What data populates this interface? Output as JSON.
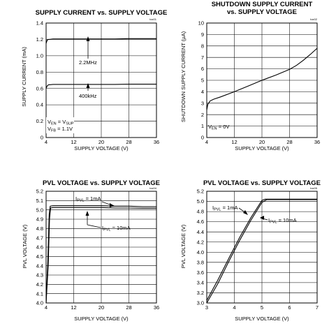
{
  "chart_data": [
    {
      "id": "p1",
      "type": "line",
      "title": "SUPPLY CURRENT vs. SUPPLY VOLTAGE",
      "code": "toc01",
      "xlabel": "SUPPLY VOLTAGE (V)",
      "ylabel": "SUPPLY CURRENT (mA)",
      "xlim": [
        4,
        36
      ],
      "ylim": [
        0,
        1.4
      ],
      "xticks": [
        "4",
        "12",
        "20",
        "28",
        "36"
      ],
      "yticks": [
        "0",
        "0.2",
        "0.4",
        "0.6",
        "0.8",
        "1.0",
        "1.2",
        "1.4"
      ],
      "grid": true,
      "series": [
        {
          "name": "2.2MHz",
          "x": [
            4,
            4.3,
            4.7,
            5,
            6,
            8,
            12,
            16,
            20,
            24,
            28,
            32,
            36
          ],
          "y": [
            1.15,
            1.19,
            1.2,
            1.2,
            1.205,
            1.205,
            1.205,
            1.205,
            1.205,
            1.205,
            1.21,
            1.21,
            1.21
          ]
        },
        {
          "name": "400kHz",
          "x": [
            4,
            4.3,
            4.7,
            5,
            6,
            8,
            12,
            16,
            20,
            24,
            28,
            32,
            36
          ],
          "y": [
            0.6,
            0.63,
            0.645,
            0.645,
            0.65,
            0.65,
            0.65,
            0.65,
            0.65,
            0.65,
            0.652,
            0.652,
            0.652
          ]
        }
      ],
      "annotations": [
        {
          "text": "2.2MHz",
          "x": 16,
          "y": 0.8
        },
        {
          "text": "400kHz",
          "x": 16,
          "y": 0.39
        }
      ],
      "conditions": [
        {
          "main": "V",
          "sub": "EN",
          "rest": " = V",
          "sub2": "SUP"
        },
        {
          "main": "V",
          "sub": "FB",
          "rest": " = 1.1V",
          "sub2": ""
        }
      ]
    },
    {
      "id": "p2",
      "type": "line",
      "title": "SHUTDOWN SUPPLY CURRENT",
      "title2": "vs. SUPPLY VOLTAGE",
      "code": "toc02",
      "xlabel": "SUPPLY VOLTAGE (V)",
      "ylabel": "SHUTDOWN SUPPLY CURRENT (µA)",
      "xlim": [
        4,
        36
      ],
      "ylim": [
        0,
        10
      ],
      "xticks": [
        "4",
        "12",
        "20",
        "28",
        "36"
      ],
      "yticks": [
        "0",
        "1",
        "2",
        "3",
        "4",
        "5",
        "6",
        "7",
        "8",
        "9",
        "10"
      ],
      "grid": true,
      "series": [
        {
          "name": "",
          "x": [
            4,
            4.3,
            5,
            6,
            8,
            12,
            16,
            20,
            24,
            28,
            30,
            32,
            34,
            36
          ],
          "y": [
            2.4,
            2.9,
            3.2,
            3.35,
            3.55,
            4.0,
            4.5,
            5.0,
            5.45,
            5.95,
            6.3,
            6.75,
            7.25,
            7.8
          ]
        }
      ],
      "conditions": [
        {
          "main": "V",
          "sub": "EN",
          "rest": " = 0V",
          "sub2": ""
        }
      ]
    },
    {
      "id": "p3",
      "type": "line",
      "title": "PVL VOLTAGE vs. SUPPLY VOLTAGE",
      "code": "toc04",
      "xlabel": "SUPPLY VOLTAGE (V)",
      "ylabel": "PVL VOLTAGE (V)",
      "xlim": [
        4,
        36
      ],
      "ylim": [
        4.0,
        5.2
      ],
      "xticks": [
        "4",
        "12",
        "20",
        "28",
        "36"
      ],
      "yticks": [
        "4.0",
        "4.1",
        "4.2",
        "4.3",
        "4.4",
        "4.5",
        "4.6",
        "4.7",
        "4.8",
        "4.9",
        "5.0",
        "5.1",
        "5.2"
      ],
      "grid": true,
      "series": [
        {
          "name": "IPVL = 1mA",
          "x": [
            4,
            4.5,
            4.9,
            5.2,
            6,
            8,
            12,
            16,
            20,
            24,
            28,
            32,
            36
          ],
          "y": [
            4.0,
            4.45,
            4.95,
            5.04,
            5.045,
            5.045,
            5.045,
            5.045,
            5.045,
            5.04,
            5.04,
            5.035,
            5.035
          ]
        },
        {
          "name": "IPVL = 10mA",
          "x": [
            4,
            4.6,
            5.0,
            5.3,
            6,
            8,
            12,
            16,
            20,
            24,
            28,
            32,
            36
          ],
          "y": [
            4.0,
            4.4,
            4.9,
            5.02,
            5.025,
            5.025,
            5.025,
            5.025,
            5.025,
            5.02,
            5.02,
            5.018,
            5.018
          ]
        }
      ],
      "annotations": [
        {
          "label": "I",
          "sub": "PVL",
          "rest": " = 1mA"
        },
        {
          "label": "I",
          "sub": "PVL",
          "rest": " = 10mA"
        }
      ]
    },
    {
      "id": "p4",
      "type": "line",
      "title": "PVL VOLTAGE vs. SUPPLY VOLTAGE",
      "code": "toc05",
      "xlabel": "SUPPLY VOLTAGE (V)",
      "ylabel": "PVL VOLTAGE (V)",
      "xlim": [
        3,
        7
      ],
      "ylim": [
        3.0,
        5.2
      ],
      "xticks": [
        "3",
        "4",
        "5",
        "6",
        "7"
      ],
      "yticks": [
        "3.0",
        "3.2",
        "3.4",
        "3.6",
        "3.8",
        "4.0",
        "4.2",
        "4.4",
        "4.6",
        "4.8",
        "5.0",
        "5.2"
      ],
      "grid": true,
      "series": [
        {
          "name": "IPVL = 1mA",
          "x": [
            3,
            3.4,
            3.8,
            4.2,
            4.6,
            5.0,
            5.12,
            5.5,
            6,
            6.5,
            7
          ],
          "y": [
            3.05,
            3.45,
            3.88,
            4.3,
            4.68,
            5.02,
            5.045,
            5.045,
            5.045,
            5.045,
            5.045
          ]
        },
        {
          "name": "IPVL = 10mA",
          "x": [
            3,
            3.4,
            3.8,
            4.2,
            4.6,
            5.0,
            5.17,
            5.5,
            6,
            6.5,
            7
          ],
          "y": [
            3.0,
            3.38,
            3.82,
            4.24,
            4.63,
            4.98,
            5.035,
            5.035,
            5.035,
            5.035,
            5.035
          ]
        }
      ],
      "annotations": [
        {
          "label": "I",
          "sub": "PVL",
          "rest": " = 1mA"
        },
        {
          "label": "I",
          "sub": "PVL",
          "rest": " = 10mA"
        }
      ]
    }
  ]
}
